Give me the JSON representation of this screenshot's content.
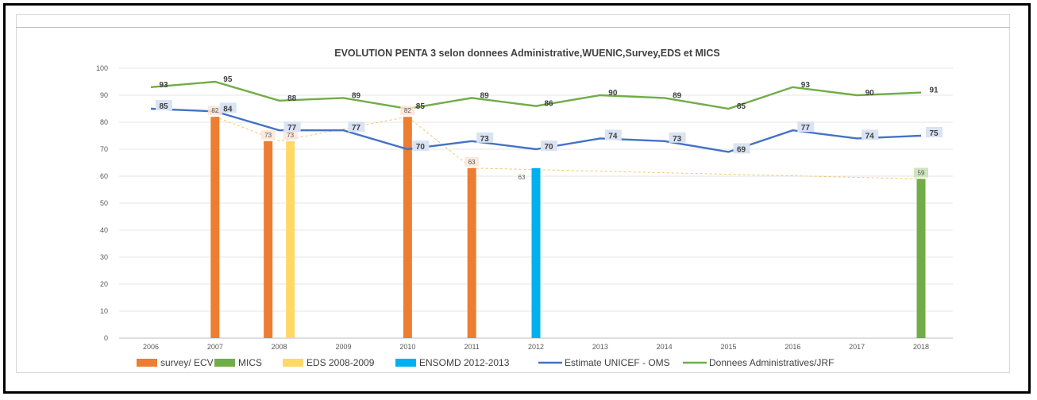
{
  "chart_data": {
    "type": "bar",
    "title": "EVOLUTION PENTA 3 selon donnees Administrative,WUENIC,Survey,EDS et MICS",
    "categories": [
      "2006",
      "2007",
      "2008",
      "2009",
      "2010",
      "2011",
      "2012",
      "2013",
      "2014",
      "2015",
      "2016",
      "2017",
      "2018"
    ],
    "ylim": [
      0,
      100
    ],
    "yticks": [
      0,
      10,
      20,
      30,
      40,
      50,
      60,
      70,
      80,
      90,
      100
    ],
    "grid": true,
    "legend": "bottom",
    "bar_series": [
      {
        "name": "survey/ ECV",
        "color": "#ed7d31",
        "points": [
          {
            "x": 2007,
            "y": 82
          },
          {
            "x": 2008,
            "y": 73
          },
          {
            "x": 2010,
            "y": 82
          },
          {
            "x": 2011,
            "y": 63
          }
        ]
      },
      {
        "name": "MICS",
        "color": "#70ad47",
        "points": [
          {
            "x": 2018,
            "y": 59
          }
        ]
      },
      {
        "name": "EDS 2008-2009",
        "color": "#ffd966",
        "points": [
          {
            "x": 2008,
            "y": 73
          }
        ]
      },
      {
        "name": "ENSOMD 2012-2013",
        "color": "#00b0f0",
        "points": [
          {
            "x": 2012,
            "y": 63
          }
        ]
      }
    ],
    "line_series": [
      {
        "name": "Estimate UNICEF - OMS",
        "color": "#4472c4",
        "values": [
          85,
          84,
          77,
          77,
          70,
          73,
          70,
          74,
          73,
          69,
          77,
          74,
          75
        ]
      },
      {
        "name": "Donnees Administratives/JRF",
        "color": "#70ad47",
        "values": [
          93,
          95,
          88,
          89,
          85,
          89,
          86,
          90,
          89,
          85,
          93,
          90,
          91
        ]
      }
    ]
  }
}
